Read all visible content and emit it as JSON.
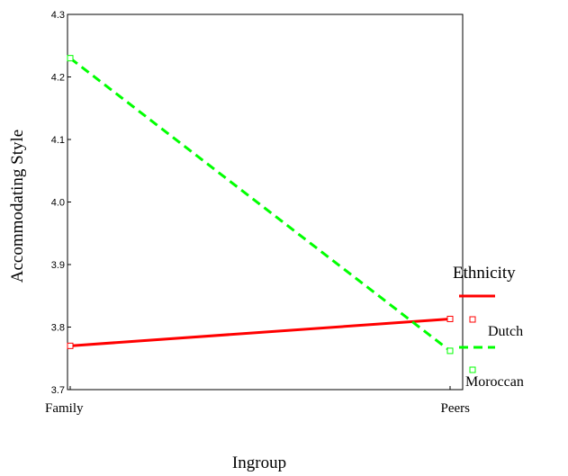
{
  "chart_data": {
    "type": "line",
    "xlabel": "Ingroup",
    "ylabel": "Accommodating Style",
    "categories": [
      "Family",
      "Peers"
    ],
    "ylim": [
      3.7,
      4.3
    ],
    "yticks": [
      "3.7",
      "3.8",
      "3.9",
      "4.0",
      "4.1",
      "4.2",
      "4.3"
    ],
    "grid": false,
    "legend": {
      "title": "Ethnicity",
      "placement": "right"
    },
    "series": [
      {
        "name": "Dutch",
        "values": [
          3.77,
          3.813
        ],
        "color": "#ff0000",
        "style": "solid"
      },
      {
        "name": "Moroccan",
        "values": [
          4.23,
          3.762
        ],
        "color": "#00ff00",
        "style": "dashed"
      }
    ]
  }
}
